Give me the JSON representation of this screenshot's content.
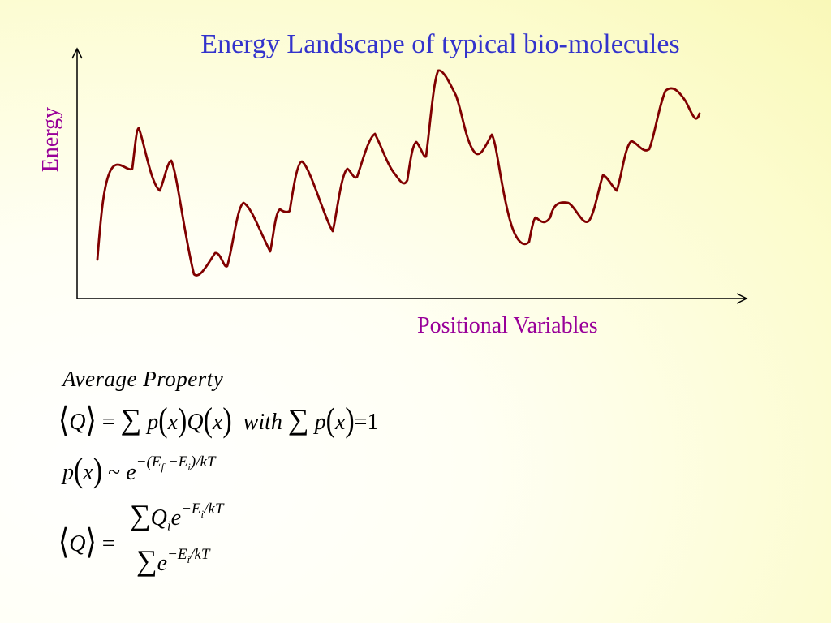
{
  "title": "Energy Landscape of typical bio-molecules",
  "y_label": "Energy",
  "x_label": "Positional Variables",
  "colors": {
    "title": "#3333cc",
    "labels": "#990099",
    "curve": "#800000",
    "axes": "#000000"
  },
  "equations": {
    "heading": "Average Property",
    "q": "Q",
    "p": "p",
    "x": "x",
    "with": "with",
    "one": "1",
    "tilde": "~",
    "e": "e",
    "exp_boltz": "−(E",
    "ef_sub": "f",
    "exp_minus": "−E",
    "ei_sub": "i",
    "exp_tail": ")/kT",
    "exp_simple_tail": "/kT",
    "qi": "Q",
    "qi_sub": "i"
  }
}
